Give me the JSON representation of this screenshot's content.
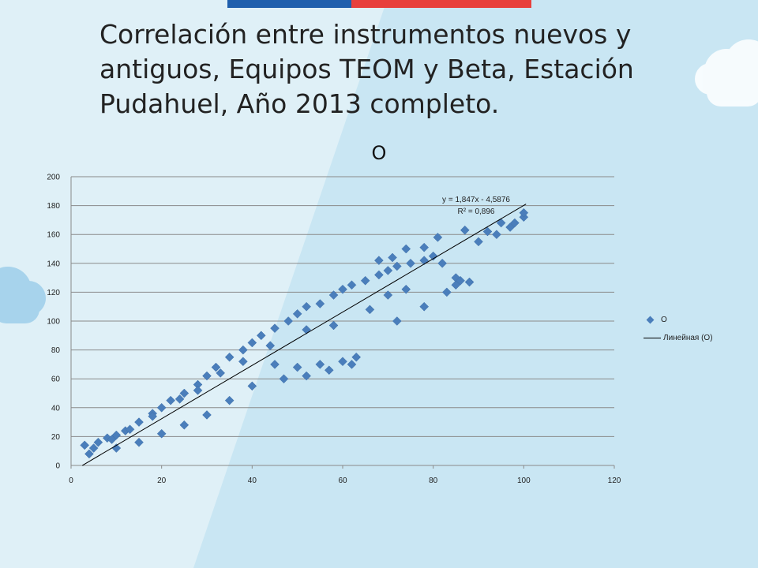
{
  "slide": {
    "title": "Correlación entre instrumentos nuevos y antiguos, Equipos TEOM y Beta, Estación Pudahuel, Año 2013 completo.",
    "colors": {
      "background": "#dff0f7",
      "band": "#c9e6f3",
      "flag_blue": "#1f5fad",
      "flag_red": "#e8403c",
      "cloud": "#ffffff",
      "cloud_blue": "#a7d3ec"
    }
  },
  "chart_data": {
    "type": "scatter",
    "title": "O",
    "xlabel": "",
    "ylabel": "",
    "xlim": [
      0,
      120
    ],
    "ylim": [
      0,
      200
    ],
    "x_ticks": [
      0,
      20,
      40,
      60,
      80,
      100,
      120
    ],
    "y_ticks": [
      0,
      20,
      40,
      60,
      80,
      100,
      120,
      140,
      160,
      180,
      200
    ],
    "grid": {
      "horizontal": true,
      "vertical": false
    },
    "series": [
      {
        "name": "O",
        "marker": "diamond",
        "color": "#4a7ebb",
        "cloud_description_points": [
          [
            3,
            14
          ],
          [
            4,
            8
          ],
          [
            5,
            12
          ],
          [
            6,
            16
          ],
          [
            8,
            19
          ],
          [
            10,
            21
          ],
          [
            12,
            24
          ],
          [
            15,
            30
          ],
          [
            18,
            36
          ],
          [
            20,
            40
          ],
          [
            22,
            45
          ],
          [
            25,
            50
          ],
          [
            28,
            56
          ],
          [
            30,
            62
          ],
          [
            32,
            68
          ],
          [
            35,
            75
          ],
          [
            38,
            80
          ],
          [
            40,
            85
          ],
          [
            42,
            90
          ],
          [
            45,
            95
          ],
          [
            48,
            100
          ],
          [
            50,
            105
          ],
          [
            52,
            110
          ],
          [
            55,
            112
          ],
          [
            58,
            118
          ],
          [
            60,
            122
          ],
          [
            62,
            125
          ],
          [
            65,
            128
          ],
          [
            68,
            132
          ],
          [
            70,
            135
          ],
          [
            72,
            138
          ],
          [
            75,
            140
          ],
          [
            78,
            142
          ],
          [
            80,
            145
          ],
          [
            82,
            140
          ],
          [
            85,
            130
          ],
          [
            86,
            128
          ],
          [
            88,
            127
          ],
          [
            90,
            155
          ],
          [
            92,
            162
          ],
          [
            94,
            160
          ],
          [
            95,
            168
          ],
          [
            97,
            165
          ],
          [
            98,
            168
          ],
          [
            100,
            172
          ],
          [
            100,
            175
          ],
          [
            81,
            158
          ],
          [
            87,
            163
          ],
          [
            68,
            142
          ],
          [
            71,
            144
          ],
          [
            74,
            150
          ],
          [
            78,
            151
          ],
          [
            45,
            70
          ],
          [
            50,
            68
          ],
          [
            55,
            70
          ],
          [
            60,
            72
          ],
          [
            63,
            75
          ],
          [
            40,
            55
          ],
          [
            35,
            45
          ],
          [
            30,
            35
          ],
          [
            25,
            28
          ],
          [
            20,
            22
          ],
          [
            15,
            16
          ],
          [
            10,
            12
          ],
          [
            47,
            60
          ],
          [
            52,
            62
          ],
          [
            57,
            66
          ],
          [
            62,
            70
          ],
          [
            72,
            100
          ],
          [
            78,
            110
          ],
          [
            83,
            120
          ],
          [
            85,
            125
          ],
          [
            58,
            97
          ],
          [
            66,
            108
          ],
          [
            70,
            118
          ],
          [
            74,
            122
          ],
          [
            52,
            94
          ],
          [
            44,
            83
          ],
          [
            38,
            72
          ],
          [
            33,
            64
          ],
          [
            28,
            52
          ],
          [
            24,
            46
          ],
          [
            18,
            34
          ],
          [
            13,
            25
          ],
          [
            9,
            18
          ]
        ]
      }
    ],
    "trendline": {
      "name": "Линейная (O)",
      "slope": 1.847,
      "intercept": -4.5876,
      "x_range": [
        2.48,
        100.5
      ],
      "equation_label": "y = 1,847x - 4,5876",
      "r2_label": "R² = 0,896"
    },
    "legend": {
      "position": "right",
      "entries": [
        "O",
        "Линейная (O)"
      ]
    }
  }
}
